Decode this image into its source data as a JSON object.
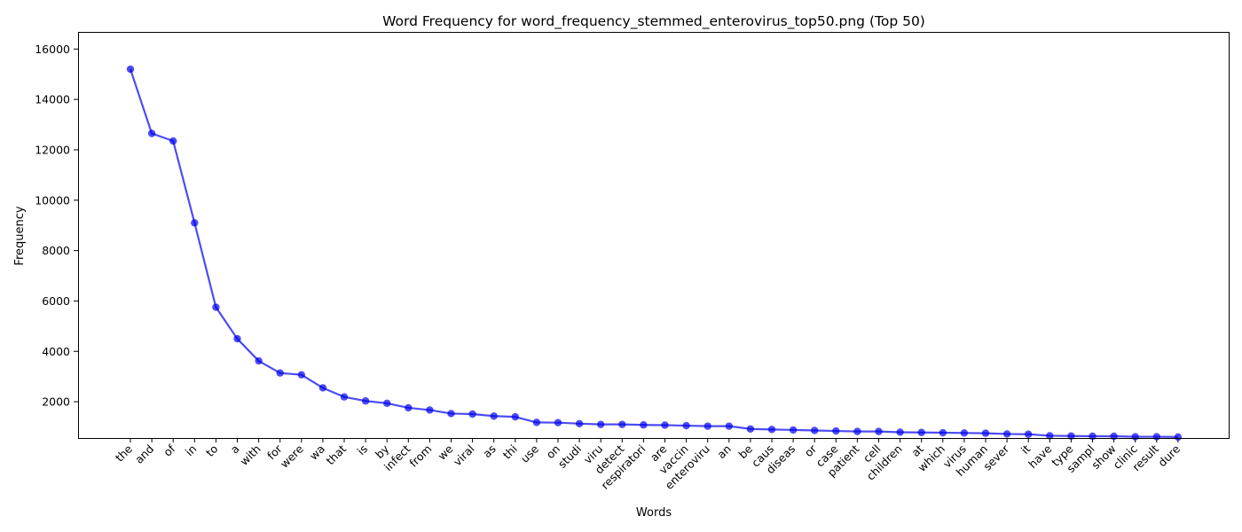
{
  "chart_data": {
    "type": "line",
    "title": "Word Frequency for word_frequency_stemmed_enterovirus_top50.png (Top 50)",
    "xlabel": "Words",
    "ylabel": "Frequency",
    "ylim": [
      560,
      16680
    ],
    "yticks": [
      2000,
      4000,
      6000,
      8000,
      10000,
      12000,
      14000,
      16000
    ],
    "grid": false,
    "line_color": "#0000ee",
    "categories": [
      "the",
      "and",
      "of",
      "in",
      "to",
      "a",
      "with",
      "for",
      "were",
      "wa",
      "that",
      "is",
      "by",
      "infect",
      "from",
      "we",
      "viral",
      "as",
      "thi",
      "use",
      "on",
      "studi",
      "viru",
      "detect",
      "respiratori",
      "are",
      "vaccin",
      "enteroviru",
      "an",
      "be",
      "caus",
      "diseas",
      "or",
      "case",
      "patient",
      "cell",
      "children",
      "at",
      "which",
      "virus",
      "human",
      "sever",
      "it",
      "have",
      "type",
      "sampl",
      "show",
      "clinic",
      "result",
      "dure"
    ],
    "values": [
      15200,
      12650,
      12350,
      9100,
      5750,
      4500,
      3620,
      3140,
      3070,
      2550,
      2190,
      2030,
      1940,
      1760,
      1670,
      1530,
      1510,
      1430,
      1400,
      1180,
      1170,
      1130,
      1100,
      1100,
      1080,
      1070,
      1050,
      1030,
      1030,
      920,
      900,
      880,
      860,
      840,
      820,
      820,
      790,
      780,
      770,
      760,
      750,
      720,
      710,
      650,
      640,
      630,
      630,
      610,
      610,
      600
    ]
  }
}
